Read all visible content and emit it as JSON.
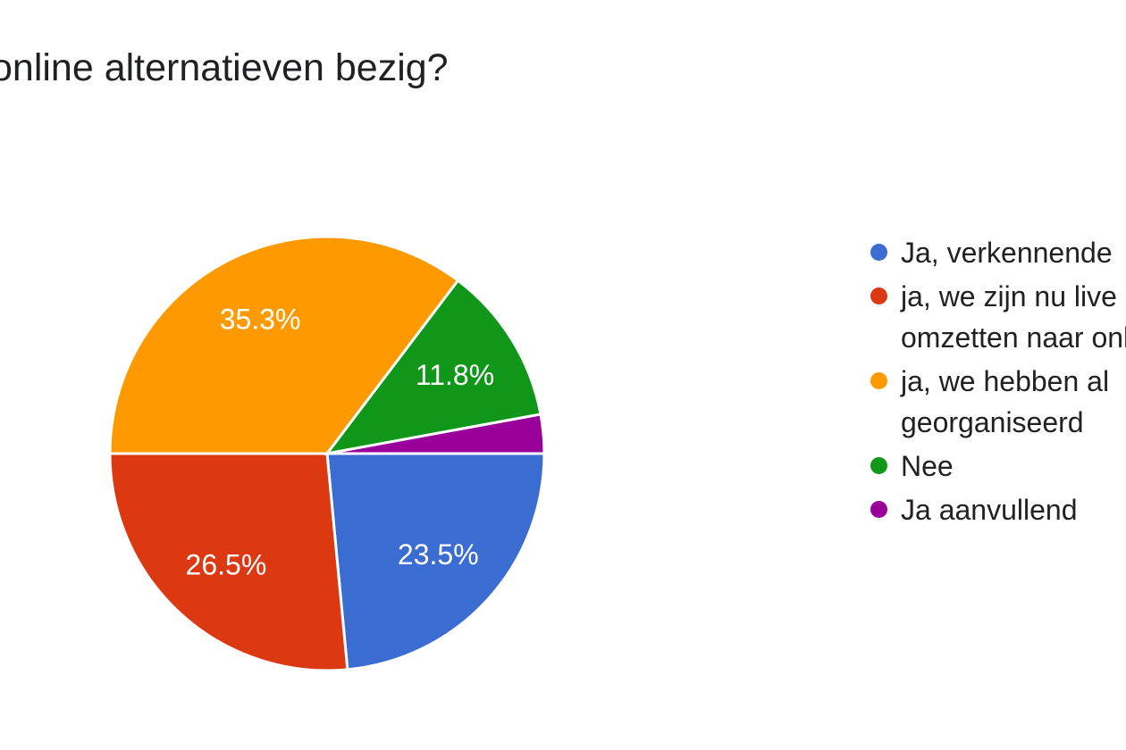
{
  "title": "online alternatieven bezig?",
  "colors": {
    "blue": "#3B6CD2",
    "red": "#DC3912",
    "orange": "#FF9900",
    "green": "#109618",
    "purple": "#990099",
    "slice_label": "#ffffff",
    "title_text": "#202124",
    "legend_text": "#212121",
    "background": "#ffffff"
  },
  "chart_data": {
    "type": "pie",
    "title": "online alternatieven bezig?",
    "legend_position": "right",
    "labels_inside_slices": true,
    "start_angle": "3-oclock, clockwise",
    "slices": [
      {
        "name": "Ja, verkennende",
        "value_pct": 23.5,
        "label": "23.5%",
        "color": "#3B6CD2"
      },
      {
        "name": "ja, we zijn nu live omzetten naar onl",
        "value_pct": 26.5,
        "label": "26.5%",
        "color": "#DC3912"
      },
      {
        "name": "ja, we hebben al georganiseerd",
        "value_pct": 35.3,
        "label": "35.3%",
        "color": "#FF9900"
      },
      {
        "name": "Nee",
        "value_pct": 11.8,
        "label": "11.8%",
        "color": "#109618"
      },
      {
        "name": "Ja aanvullend",
        "value_pct": 2.9,
        "label": "",
        "color": "#990099"
      }
    ]
  },
  "legend": {
    "items": [
      {
        "lines": [
          "Ja, verkennende"
        ],
        "color": "#3B6CD2"
      },
      {
        "lines": [
          "ja, we zijn nu live",
          "omzetten naar onl"
        ],
        "color": "#DC3912"
      },
      {
        "lines": [
          "ja, we hebben al",
          "georganiseerd"
        ],
        "color": "#FF9900"
      },
      {
        "lines": [
          "Nee"
        ],
        "color": "#109618"
      },
      {
        "lines": [
          "Ja aanvullend"
        ],
        "color": "#990099"
      }
    ]
  }
}
